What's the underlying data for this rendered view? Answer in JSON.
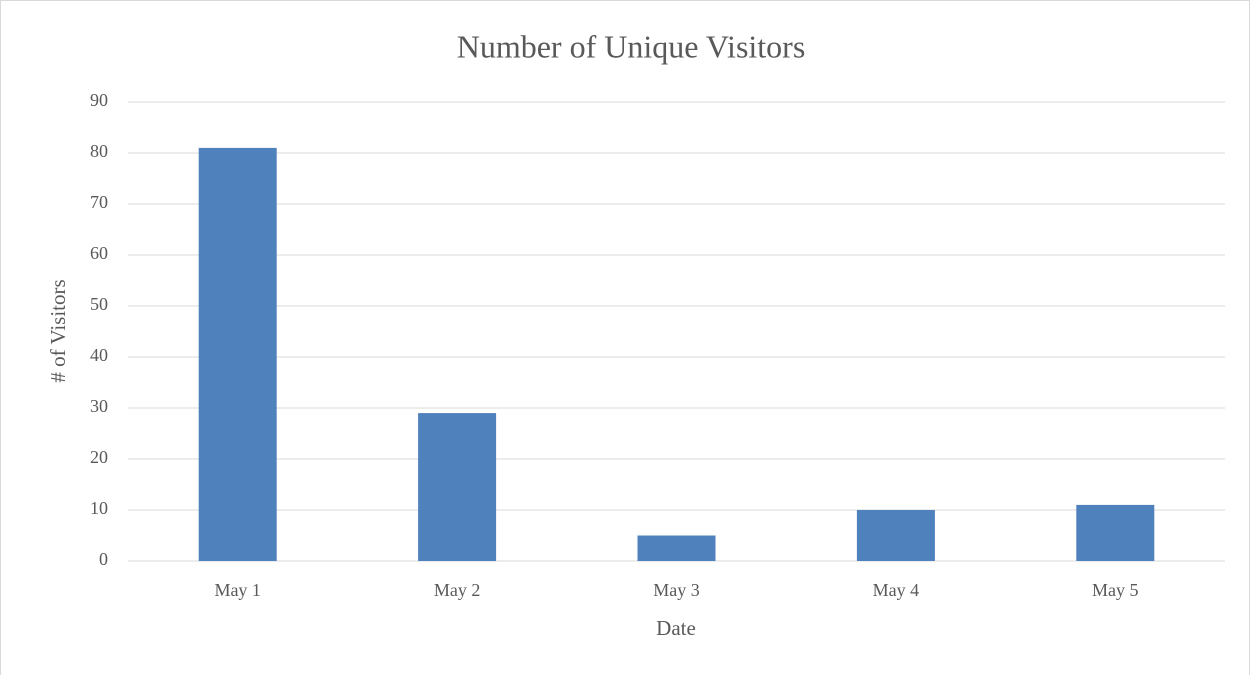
{
  "chart_data": {
    "type": "bar",
    "title": "Number of Unique Visitors",
    "x_label": "Date",
    "y_label": "# of Visitors",
    "categories": [
      "May 1",
      "May 2",
      "May 3",
      "May 4",
      "May 5"
    ],
    "values": [
      81,
      29,
      5,
      10,
      11
    ],
    "color": "#4f81bd",
    "ylim": [
      0,
      90
    ],
    "yticks": [
      0,
      10,
      20,
      30,
      40,
      50,
      60,
      70,
      80,
      90
    ],
    "grid": true
  }
}
